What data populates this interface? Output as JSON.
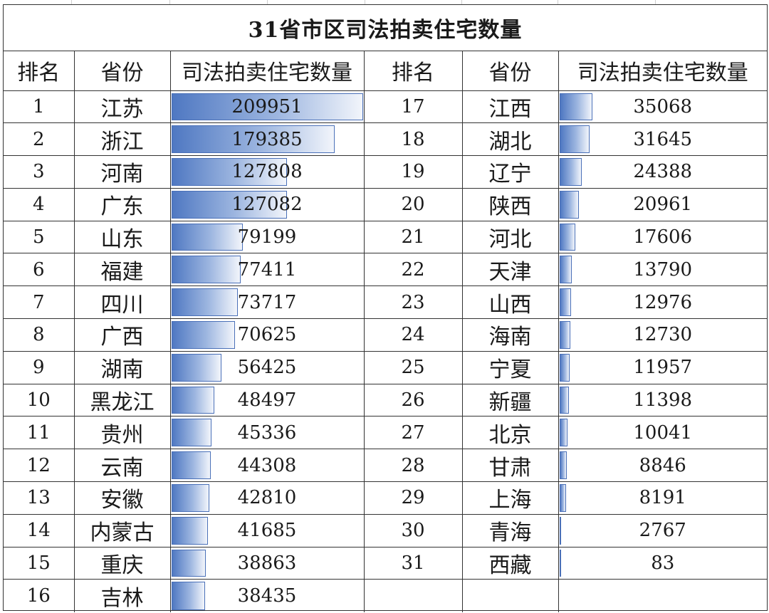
{
  "title": "31省市区司法拍卖住宅数量",
  "headers": [
    "排名",
    "省份",
    "司法拍卖住宅数量",
    "排名",
    "省份",
    "司法拍卖住宅数量"
  ],
  "max_value": 209951,
  "left_rows": [
    {
      "rank": "1",
      "province": "江苏",
      "value": "209951"
    },
    {
      "rank": "2",
      "province": "浙江",
      "value": "179385"
    },
    {
      "rank": "3",
      "province": "河南",
      "value": "127808"
    },
    {
      "rank": "4",
      "province": "广东",
      "value": "127082"
    },
    {
      "rank": "5",
      "province": "山东",
      "value": "79199"
    },
    {
      "rank": "6",
      "province": "福建",
      "value": "77411"
    },
    {
      "rank": "7",
      "province": "四川",
      "value": "73717"
    },
    {
      "rank": "8",
      "province": "广西",
      "value": "70625"
    },
    {
      "rank": "9",
      "province": "湖南",
      "value": "56425"
    },
    {
      "rank": "10",
      "province": "黑龙江",
      "value": "48497"
    },
    {
      "rank": "11",
      "province": "贵州",
      "value": "45336"
    },
    {
      "rank": "12",
      "province": "云南",
      "value": "44308"
    },
    {
      "rank": "13",
      "province": "安徽",
      "value": "42810"
    },
    {
      "rank": "14",
      "province": "内蒙古",
      "value": "41685"
    },
    {
      "rank": "15",
      "province": "重庆",
      "value": "38863"
    },
    {
      "rank": "16",
      "province": "吉林",
      "value": "38435"
    }
  ],
  "right_rows": [
    {
      "rank": "17",
      "province": "江西",
      "value": "35068"
    },
    {
      "rank": "18",
      "province": "湖北",
      "value": "31645"
    },
    {
      "rank": "19",
      "province": "辽宁",
      "value": "24388"
    },
    {
      "rank": "20",
      "province": "陕西",
      "value": "20961"
    },
    {
      "rank": "21",
      "province": "河北",
      "value": "17606"
    },
    {
      "rank": "22",
      "province": "天津",
      "value": "13790"
    },
    {
      "rank": "23",
      "province": "山西",
      "value": "12976"
    },
    {
      "rank": "24",
      "province": "海南",
      "value": "12730"
    },
    {
      "rank": "25",
      "province": "宁夏",
      "value": "11957"
    },
    {
      "rank": "26",
      "province": "新疆",
      "value": "11398"
    },
    {
      "rank": "27",
      "province": "北京",
      "value": "10041"
    },
    {
      "rank": "28",
      "province": "甘肃",
      "value": "8846"
    },
    {
      "rank": "29",
      "province": "上海",
      "value": "8191"
    },
    {
      "rank": "30",
      "province": "青海",
      "value": "2767"
    },
    {
      "rank": "31",
      "province": "西藏",
      "value": "83"
    }
  ],
  "bar_color": "#4f78c2"
}
